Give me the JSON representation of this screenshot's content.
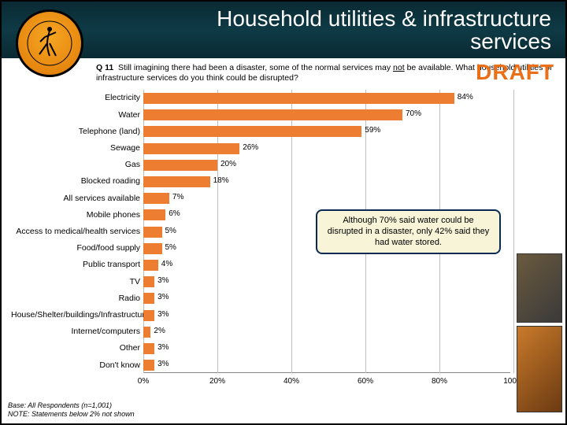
{
  "header": {
    "title_line1": "Household utilities & infrastructure",
    "title_line2": "services"
  },
  "question": {
    "prefix": "Q 11",
    "text_a": "Still imagining there had been a disaster, some of the normal services may ",
    "not": "not",
    "text_b": " be available.  What household utilities or infrastructure services do you think could be disrupted?"
  },
  "draft_label": "DRAFT",
  "chart": {
    "type": "bar-horizontal",
    "x_min": 0,
    "x_max": 100,
    "x_tick_step": 20,
    "x_tick_format_suffix": "%",
    "bar_color": "#ed7d31",
    "grid_color": "#bfbfbf",
    "categories": [
      {
        "label": "Electricity",
        "value": 84
      },
      {
        "label": "Water",
        "value": 70
      },
      {
        "label": "Telephone (land)",
        "value": 59
      },
      {
        "label": "Sewage",
        "value": 26
      },
      {
        "label": "Gas",
        "value": 20
      },
      {
        "label": "Blocked roading",
        "value": 18
      },
      {
        "label": "All services available",
        "value": 7
      },
      {
        "label": "Mobile phones",
        "value": 6
      },
      {
        "label": "Access to medical/health services",
        "value": 5
      },
      {
        "label": "Food/food supply",
        "value": 5
      },
      {
        "label": "Public transport",
        "value": 4
      },
      {
        "label": "TV",
        "value": 3
      },
      {
        "label": "Radio",
        "value": 3
      },
      {
        "label": "House/Shelter/buildings/Infrastructure",
        "value": 3
      },
      {
        "label": "Internet/computers",
        "value": 2
      },
      {
        "label": "Other",
        "value": 3
      },
      {
        "label": "Don't know",
        "value": 3
      }
    ]
  },
  "callout": {
    "text": "Although 70% said water could be disrupted in a disaster, only 42% said they had water stored.",
    "bg": "#f8f4d8",
    "border": "#0a2a55"
  },
  "footnote": {
    "line1": "Base: All Respondents (n=1,001)",
    "line2": "NOTE: Statements below 2% not shown"
  }
}
